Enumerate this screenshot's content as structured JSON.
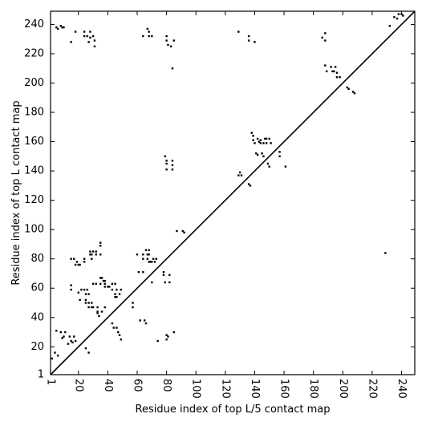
{
  "chart_data": {
    "type": "scatter",
    "title": "",
    "xlabel": "Residue index of top L/5 contact map",
    "ylabel": "Residue index of top L contact map",
    "xlim": [
      1,
      249
    ],
    "ylim": [
      1,
      249
    ],
    "x_ticks": [
      1,
      20,
      40,
      60,
      80,
      100,
      120,
      140,
      160,
      180,
      200,
      220,
      240
    ],
    "y_ticks": [
      1,
      20,
      40,
      60,
      80,
      100,
      120,
      140,
      160,
      180,
      200,
      220,
      240
    ],
    "x_tick_rotation": -90,
    "grid": false,
    "diagonal": [
      [
        1,
        1
      ],
      [
        249,
        249
      ]
    ],
    "marker_color": "#000000",
    "series": [
      {
        "values": [
          [
            5,
            238
          ],
          [
            6,
            237
          ],
          [
            8,
            239
          ],
          [
            9,
            238
          ],
          [
            10,
            238
          ],
          [
            15,
            228
          ],
          [
            18,
            235
          ],
          [
            24,
            235
          ],
          [
            24,
            232
          ],
          [
            26,
            232
          ],
          [
            27,
            228
          ],
          [
            28,
            235
          ],
          [
            28,
            231
          ],
          [
            30,
            232
          ],
          [
            31,
            229
          ],
          [
            31,
            225
          ],
          [
            64,
            232
          ],
          [
            67,
            237
          ],
          [
            68,
            235
          ],
          [
            68,
            232
          ],
          [
            70,
            232
          ],
          [
            80,
            232
          ],
          [
            80,
            229
          ],
          [
            81,
            226
          ],
          [
            83,
            225
          ],
          [
            85,
            229
          ],
          [
            84,
            210
          ],
          [
            129,
            235
          ],
          [
            136,
            232
          ],
          [
            136,
            229
          ],
          [
            140,
            228
          ],
          [
            186,
            231
          ],
          [
            188,
            234
          ],
          [
            188,
            229
          ],
          [
            188,
            212
          ],
          [
            189,
            208
          ],
          [
            192,
            211
          ],
          [
            193,
            208
          ],
          [
            194,
            208
          ],
          [
            195,
            211
          ],
          [
            196,
            207
          ],
          [
            196,
            204
          ],
          [
            198,
            204
          ],
          [
            203,
            197
          ],
          [
            204,
            196
          ],
          [
            207,
            194
          ],
          [
            208,
            193
          ],
          [
            232,
            239
          ],
          [
            235,
            245
          ],
          [
            237,
            244
          ],
          [
            238,
            247
          ],
          [
            240,
            247
          ],
          [
            241,
            246
          ]
        ]
      },
      {
        "values": [
          [
            2,
            12
          ],
          [
            4,
            16
          ],
          [
            5,
            31
          ],
          [
            6,
            14
          ],
          [
            8,
            30
          ],
          [
            9,
            26
          ],
          [
            10,
            27
          ],
          [
            11,
            30
          ],
          [
            13,
            22
          ],
          [
            14,
            27
          ],
          [
            15,
            24
          ],
          [
            16,
            23
          ],
          [
            17,
            27
          ],
          [
            18,
            24
          ],
          [
            15,
            80
          ],
          [
            15,
            62
          ],
          [
            15,
            59
          ],
          [
            17,
            80
          ],
          [
            18,
            76
          ],
          [
            19,
            78
          ],
          [
            20,
            76
          ],
          [
            21,
            76
          ],
          [
            20,
            57
          ],
          [
            21,
            52
          ],
          [
            22,
            59
          ],
          [
            24,
            80
          ],
          [
            24,
            78
          ],
          [
            24,
            59
          ],
          [
            25,
            56
          ],
          [
            25,
            52
          ],
          [
            25,
            50
          ],
          [
            26,
            59
          ],
          [
            27,
            56
          ],
          [
            27,
            50
          ],
          [
            27,
            47
          ],
          [
            25,
            19
          ],
          [
            27,
            16
          ],
          [
            28,
            85
          ],
          [
            28,
            83
          ],
          [
            29,
            83
          ],
          [
            29,
            80
          ],
          [
            29,
            50
          ],
          [
            29,
            47
          ],
          [
            30,
            63
          ],
          [
            30,
            47
          ],
          [
            30,
            85
          ],
          [
            32,
            83
          ],
          [
            32,
            85
          ],
          [
            32,
            63
          ],
          [
            33,
            43
          ],
          [
            33,
            47
          ],
          [
            33,
            44
          ],
          [
            34,
            41
          ],
          [
            35,
            91
          ],
          [
            35,
            89
          ],
          [
            35,
            83
          ],
          [
            35,
            67
          ],
          [
            35,
            63
          ],
          [
            36,
            67
          ],
          [
            36,
            44
          ],
          [
            37,
            65
          ],
          [
            38,
            65
          ],
          [
            38,
            63
          ],
          [
            38,
            61
          ],
          [
            38,
            47
          ],
          [
            40,
            61
          ],
          [
            41,
            61
          ],
          [
            43,
            63
          ],
          [
            43,
            59
          ],
          [
            43,
            36
          ],
          [
            44,
            33
          ],
          [
            45,
            63
          ],
          [
            45,
            56
          ],
          [
            45,
            54
          ],
          [
            46,
            59
          ],
          [
            46,
            54
          ],
          [
            46,
            33
          ],
          [
            47,
            30
          ],
          [
            48,
            56
          ],
          [
            48,
            28
          ],
          [
            49,
            59
          ],
          [
            49,
            25
          ],
          [
            57,
            50
          ],
          [
            57,
            47
          ],
          [
            60,
            83
          ],
          [
            61,
            71
          ],
          [
            62,
            38
          ],
          [
            64,
            83
          ],
          [
            64,
            80
          ],
          [
            64,
            71
          ],
          [
            65,
            38
          ],
          [
            66,
            36
          ],
          [
            66,
            86
          ],
          [
            67,
            83
          ],
          [
            67,
            80
          ],
          [
            68,
            86
          ],
          [
            68,
            83
          ],
          [
            68,
            78
          ],
          [
            69,
            78
          ],
          [
            70,
            78
          ],
          [
            70,
            64
          ],
          [
            71,
            80
          ],
          [
            72,
            78
          ],
          [
            73,
            80
          ],
          [
            74,
            24
          ],
          [
            78,
            71
          ],
          [
            78,
            69
          ],
          [
            79,
            64
          ],
          [
            80,
            28
          ],
          [
            80,
            25
          ],
          [
            81,
            27
          ],
          [
            82,
            69
          ],
          [
            82,
            64
          ],
          [
            85,
            30
          ],
          [
            87,
            99
          ],
          [
            91,
            99
          ],
          [
            92,
            98
          ],
          [
            79,
            150
          ],
          [
            80,
            145
          ],
          [
            80,
            141
          ],
          [
            80,
            147
          ],
          [
            84,
            147
          ],
          [
            84,
            144
          ],
          [
            84,
            141
          ],
          [
            129,
            137
          ],
          [
            130,
            139
          ],
          [
            131,
            137
          ],
          [
            136,
            131
          ],
          [
            137,
            130
          ],
          [
            138,
            166
          ],
          [
            139,
            164
          ],
          [
            139,
            161
          ],
          [
            140,
            159
          ],
          [
            141,
            152
          ],
          [
            142,
            151
          ],
          [
            142,
            162
          ],
          [
            143,
            160
          ],
          [
            144,
            161
          ],
          [
            144,
            159
          ],
          [
            145,
            152
          ],
          [
            146,
            150
          ],
          [
            146,
            159
          ],
          [
            147,
            162
          ],
          [
            148,
            159
          ],
          [
            148,
            162
          ],
          [
            149,
            145
          ],
          [
            150,
            143
          ],
          [
            150,
            162
          ],
          [
            151,
            159
          ],
          [
            157,
            153
          ],
          [
            157,
            150
          ],
          [
            161,
            143
          ],
          [
            229,
            84
          ]
        ]
      }
    ]
  }
}
